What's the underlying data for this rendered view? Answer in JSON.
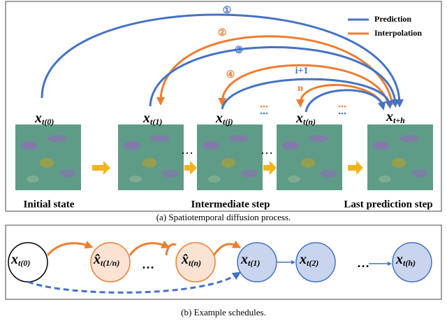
{
  "legend": {
    "prediction": "Prediction",
    "interpolation": "Interpolation"
  },
  "arcs": [
    "①",
    "②",
    "③",
    "④",
    "i+1",
    "n"
  ],
  "panel_a": {
    "states": [
      {
        "base": "x",
        "sub": "t(0)"
      },
      {
        "base": "x",
        "sub": "t(1)"
      },
      {
        "base": "x",
        "sub": "t(j)"
      },
      {
        "base": "x",
        "sub": "t(n)"
      },
      {
        "base": "x",
        "sub": "t+h"
      }
    ],
    "between_dots": [
      "…",
      "…"
    ],
    "arc_dots": [
      "...",
      "...",
      "...",
      "..."
    ],
    "steps": [
      "Initial state",
      "Intermediate step",
      "Last prediction step"
    ],
    "caption": "(a) Spatiotemporal diffusion process."
  },
  "panel_b": {
    "nodes": [
      {
        "base": "x",
        "sub": "t(0)"
      },
      {
        "base": "x̂",
        "sub": "t(1/n)"
      },
      {
        "base": "x̂",
        "sub": "t(n)"
      },
      {
        "base": "x",
        "sub": "t(1)"
      },
      {
        "base": "x",
        "sub": "t(2)"
      },
      {
        "base": "x",
        "sub": "t(h)"
      }
    ],
    "dots": [
      "…",
      "…"
    ],
    "caption": "(b) Example schedules."
  }
}
